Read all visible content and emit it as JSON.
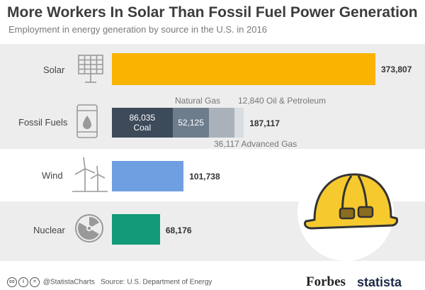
{
  "header": {
    "title": "More Workers In Solar Than Fossil Fuel Power Generation",
    "subtitle": "Employment in energy generation by source in the U.S. in 2016"
  },
  "chart_data": {
    "type": "bar",
    "orientation": "horizontal",
    "title": "More Workers In Solar Than Fossil Fuel Power Generation",
    "subtitle": "Employment in energy generation by source in the U.S. in 2016",
    "categories": [
      "Solar",
      "Fossil Fuels",
      "Wind",
      "Nuclear"
    ],
    "values": [
      373807,
      187117,
      101738,
      68176
    ],
    "value_labels": [
      "373,807",
      "187,117",
      "101,738",
      "68,176"
    ],
    "fossil_breakdown": [
      {
        "name": "Coal",
        "value": 86035,
        "label": "86,035",
        "color": "#3d4a5a"
      },
      {
        "name": "Natural Gas",
        "value": 52125,
        "label": "52,125",
        "color": "#6d7d8c"
      },
      {
        "name": "Advanced Gas",
        "value": 36117,
        "label": "36,117",
        "color": "#a9b2ba"
      },
      {
        "name": "Oil & Petroleum",
        "value": 12840,
        "label": "12,840",
        "color": "#d8dde1"
      }
    ],
    "colors": {
      "Solar": "#f9b300",
      "Wind": "#6f9fe0",
      "Nuclear": "#139a78"
    },
    "xlim": [
      0,
      373807
    ]
  },
  "footer": {
    "handle": "@StatistaCharts",
    "source": "Source: U.S. Department of Energy",
    "forbes": "Forbes",
    "statista": "statista"
  }
}
